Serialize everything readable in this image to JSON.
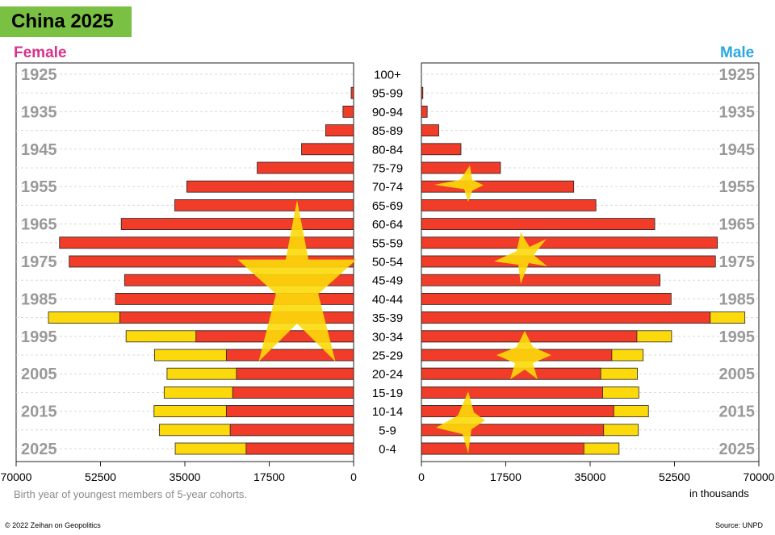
{
  "title": "China 2025",
  "female_label": "Female",
  "male_label": "Male",
  "footnote": "Birth year of youngest members of 5-year cohorts.",
  "units_label": "in thousands",
  "copyright": "© 2022 Zeihan on Geopolitics",
  "source": "Source: UNPD",
  "colors": {
    "red": "#f03c28",
    "yellow": "#fcd90a",
    "title_green": "#7ac143",
    "female": "#d6338a",
    "male": "#29a9df"
  },
  "chart_data": {
    "type": "bar",
    "orientation": "horizontal",
    "categories": [
      "100+",
      "95-99",
      "90-94",
      "85-89",
      "80-84",
      "75-79",
      "70-74",
      "65-69",
      "60-64",
      "55-59",
      "50-54",
      "45-49",
      "40-44",
      "35-39",
      "30-34",
      "25-29",
      "20-24",
      "15-19",
      "10-14",
      "5-9",
      "0-4"
    ],
    "series": [
      {
        "name": "Female",
        "values": [
          0,
          500,
          2200,
          5800,
          10800,
          20000,
          34600,
          37100,
          48200,
          61000,
          59000,
          47500,
          49400,
          63300,
          47200,
          41300,
          38700,
          39300,
          41400,
          40300,
          37000
        ]
      },
      {
        "name": "Male",
        "values": [
          0,
          300,
          1200,
          3600,
          8200,
          16400,
          31600,
          36200,
          48400,
          61400,
          61000,
          49500,
          51800,
          67100,
          51900,
          46000,
          44800,
          45100,
          47100,
          45000,
          41000
        ]
      }
    ],
    "highlight_values": {
      "Female": [
        0,
        0,
        0,
        0,
        0,
        0,
        0,
        0,
        0,
        0,
        0,
        0,
        0,
        48500,
        32700,
        26400,
        24300,
        25100,
        26400,
        25600,
        22300
      ],
      "Male": [
        0,
        0,
        0,
        0,
        0,
        0,
        0,
        0,
        0,
        0,
        0,
        0,
        0,
        59900,
        44700,
        39500,
        37200,
        37600,
        39900,
        37800,
        33700
      ]
    },
    "birth_years": [
      "1925",
      "1935",
      "1945",
      "1955",
      "1965",
      "1975",
      "1985",
      "1995",
      "2005",
      "2015",
      "2025"
    ],
    "x_ticks_left": [
      "70000",
      "52500",
      "35000",
      "17500",
      "0"
    ],
    "x_ticks_right": [
      "0",
      "17500",
      "35000",
      "52500",
      "70000"
    ],
    "xlim": [
      0,
      70000
    ],
    "grid": true
  }
}
